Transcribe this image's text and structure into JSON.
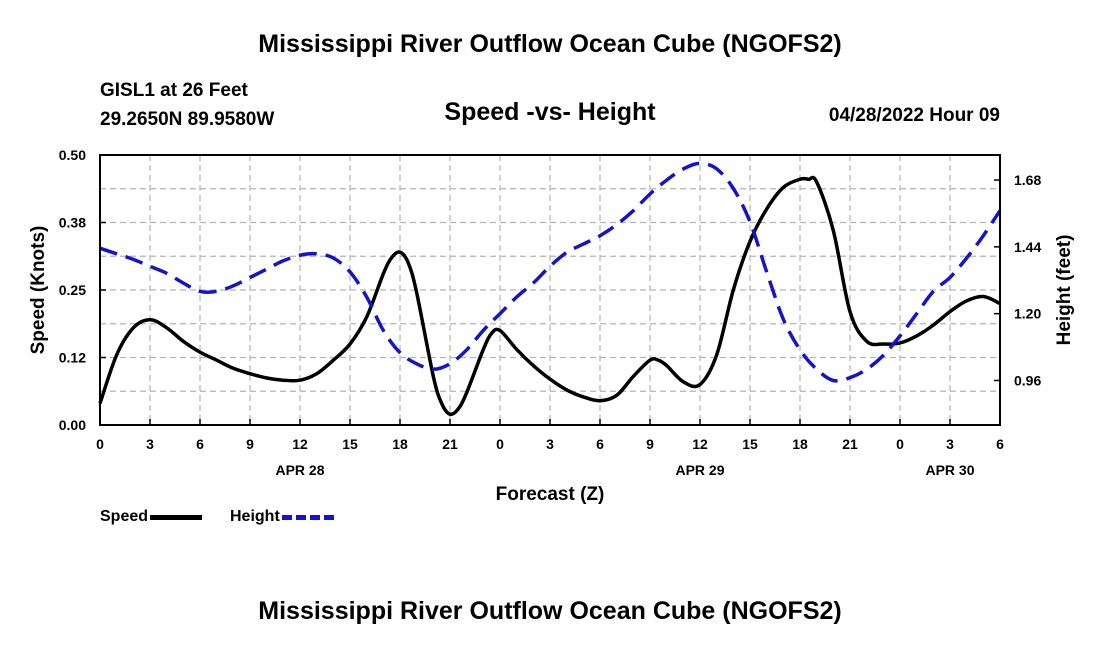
{
  "page": {
    "title_top": "Mississippi River Outflow Ocean Cube (NGOFS2)",
    "title_bottom": "Mississippi River Outflow Ocean Cube (NGOFS2)",
    "station": "GISL1 at 26 Feet",
    "coords": "29.2650N  89.9580W",
    "subtitle": "Speed -vs- Height",
    "datetime": "04/28/2022 Hour 09"
  },
  "colors": {
    "speed": "#000000",
    "height": "#1414c8",
    "grid": "#b4b4b4"
  },
  "chart_data": {
    "type": "line",
    "xlabel": "Forecast (Z)",
    "ylabel_left": "Speed (Knots)",
    "ylabel_right": "Height (feet)",
    "xlim": [
      0,
      54
    ],
    "ylim_left": [
      0,
      0.5
    ],
    "ylim_right": [
      0.8,
      1.77
    ],
    "x_ticks": [
      0,
      3,
      6,
      9,
      12,
      15,
      18,
      21,
      24,
      27,
      30,
      33,
      36,
      39,
      42,
      45,
      48,
      51,
      54
    ],
    "x_tick_labels": [
      "0",
      "3",
      "6",
      "9",
      "12",
      "15",
      "18",
      "21",
      "0",
      "3",
      "6",
      "9",
      "12",
      "15",
      "18",
      "21",
      "0",
      "3",
      "6"
    ],
    "date_labels": [
      {
        "x": 12,
        "label": "APR 28"
      },
      {
        "x": 36,
        "label": "APR 29"
      },
      {
        "x": 51,
        "label": "APR 30"
      }
    ],
    "left_ticks": [
      0,
      0.125,
      0.25,
      0.375,
      0.5
    ],
    "left_tick_labels": [
      "0.00",
      "0.12",
      "0.25",
      "0.38",
      "0.50"
    ],
    "right_ticks": [
      0.96,
      1.2,
      1.44,
      1.68
    ],
    "right_tick_labels": [
      "0.96",
      "1.20",
      "1.44",
      "1.68"
    ],
    "grid": true,
    "series": [
      {
        "name": "Speed",
        "axis": "left",
        "style": "solid",
        "x": [
          0,
          1,
          2,
          3,
          4,
          5,
          6,
          7,
          8,
          9,
          10,
          11,
          12,
          13,
          14,
          15,
          16,
          17,
          17.5,
          18,
          18.5,
          19,
          20,
          20.5,
          21,
          21.5,
          22,
          23,
          23.5,
          24,
          25,
          26,
          27,
          28,
          29,
          30,
          31,
          32,
          33,
          33.5,
          34,
          35,
          36,
          37,
          38,
          39,
          40,
          41,
          42,
          42.5,
          43,
          44,
          45,
          46,
          47,
          48,
          49,
          50,
          51,
          52,
          53,
          54
        ],
        "values": [
          0.04,
          0.13,
          0.18,
          0.195,
          0.18,
          0.155,
          0.135,
          0.12,
          0.105,
          0.095,
          0.087,
          0.083,
          0.083,
          0.095,
          0.12,
          0.15,
          0.2,
          0.28,
          0.31,
          0.32,
          0.3,
          0.245,
          0.09,
          0.04,
          0.02,
          0.03,
          0.06,
          0.14,
          0.17,
          0.175,
          0.14,
          0.11,
          0.085,
          0.065,
          0.052,
          0.045,
          0.055,
          0.09,
          0.12,
          0.12,
          0.11,
          0.08,
          0.075,
          0.13,
          0.25,
          0.34,
          0.4,
          0.44,
          0.455,
          0.455,
          0.45,
          0.36,
          0.21,
          0.155,
          0.15,
          0.152,
          0.165,
          0.185,
          0.21,
          0.23,
          0.238,
          0.225
        ]
      },
      {
        "name": "Height",
        "axis": "right",
        "style": "dashed",
        "x": [
          0,
          1,
          2,
          3,
          4,
          5,
          6,
          7,
          8,
          9,
          10,
          11,
          12,
          13,
          14,
          15,
          16,
          17,
          18,
          19,
          20,
          21,
          22,
          23,
          24,
          25,
          26,
          27,
          28,
          29,
          30,
          31,
          32,
          33,
          34,
          35,
          36,
          37,
          38,
          39,
          40,
          41,
          42,
          43,
          44,
          45,
          46,
          47,
          48,
          49,
          50,
          51,
          52,
          53,
          54
        ],
        "values": [
          1.435,
          1.415,
          1.395,
          1.37,
          1.345,
          1.31,
          1.28,
          1.28,
          1.3,
          1.33,
          1.36,
          1.39,
          1.41,
          1.415,
          1.4,
          1.35,
          1.26,
          1.14,
          1.06,
          1.02,
          1.0,
          1.02,
          1.07,
          1.14,
          1.2,
          1.26,
          1.31,
          1.37,
          1.42,
          1.45,
          1.48,
          1.52,
          1.57,
          1.63,
          1.68,
          1.72,
          1.74,
          1.72,
          1.65,
          1.53,
          1.35,
          1.18,
          1.07,
          1.0,
          0.96,
          0.97,
          1.0,
          1.05,
          1.12,
          1.2,
          1.28,
          1.33,
          1.4,
          1.48,
          1.57
        ]
      }
    ]
  }
}
